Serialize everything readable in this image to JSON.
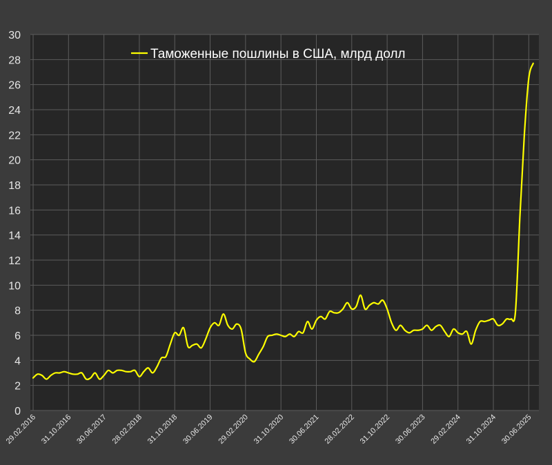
{
  "chart_data": {
    "type": "line",
    "ylim": [
      0,
      30
    ],
    "yticks": [
      0,
      2,
      4,
      6,
      8,
      10,
      12,
      14,
      16,
      18,
      20,
      22,
      24,
      26,
      28,
      30
    ],
    "x_tick_labels": [
      "29.02.2016",
      "31.10.2016",
      "30.06.2017",
      "28.02.2018",
      "31.10.2018",
      "30.06.2019",
      "29.02.2020",
      "31.10.2020",
      "30.06.2021",
      "28.02.2022",
      "31.10.2022",
      "30.06.2023",
      "29.02.2024",
      "31.10.2024",
      "30.06.2025"
    ],
    "grid": true,
    "legend_position": "top",
    "line_color": "#ffff00",
    "series": [
      {
        "name": "Таможенные пошлины в США, млрд долл",
        "values": [
          2.6,
          2.9,
          2.8,
          2.5,
          2.8,
          3.0,
          3.0,
          3.1,
          3.0,
          2.9,
          2.9,
          3.0,
          2.5,
          2.6,
          3.0,
          2.5,
          2.8,
          3.2,
          3.0,
          3.2,
          3.2,
          3.1,
          3.1,
          3.2,
          2.7,
          3.1,
          3.4,
          3.0,
          3.5,
          4.2,
          4.3,
          5.3,
          6.2,
          6.0,
          6.6,
          5.1,
          5.2,
          5.3,
          5.0,
          5.7,
          6.6,
          7.0,
          6.8,
          7.7,
          6.8,
          6.5,
          6.9,
          6.5,
          4.6,
          4.1,
          3.9,
          4.5,
          5.1,
          5.9,
          6.0,
          6.1,
          6.0,
          5.9,
          6.1,
          5.9,
          6.3,
          6.2,
          7.1,
          6.5,
          7.2,
          7.5,
          7.3,
          7.9,
          7.8,
          7.8,
          8.1,
          8.6,
          8.1,
          8.3,
          9.2,
          8.1,
          8.4,
          8.6,
          8.5,
          8.8,
          8.1,
          7.0,
          6.4,
          6.8,
          6.4,
          6.2,
          6.4,
          6.4,
          6.5,
          6.8,
          6.4,
          6.7,
          6.8,
          6.3,
          5.9,
          6.5,
          6.2,
          6.1,
          6.3,
          5.3,
          6.4,
          7.1,
          7.1,
          7.2,
          7.3,
          6.8,
          6.9,
          7.3,
          7.3,
          7.9,
          15.5,
          22.0,
          26.5,
          27.7
        ]
      }
    ]
  }
}
